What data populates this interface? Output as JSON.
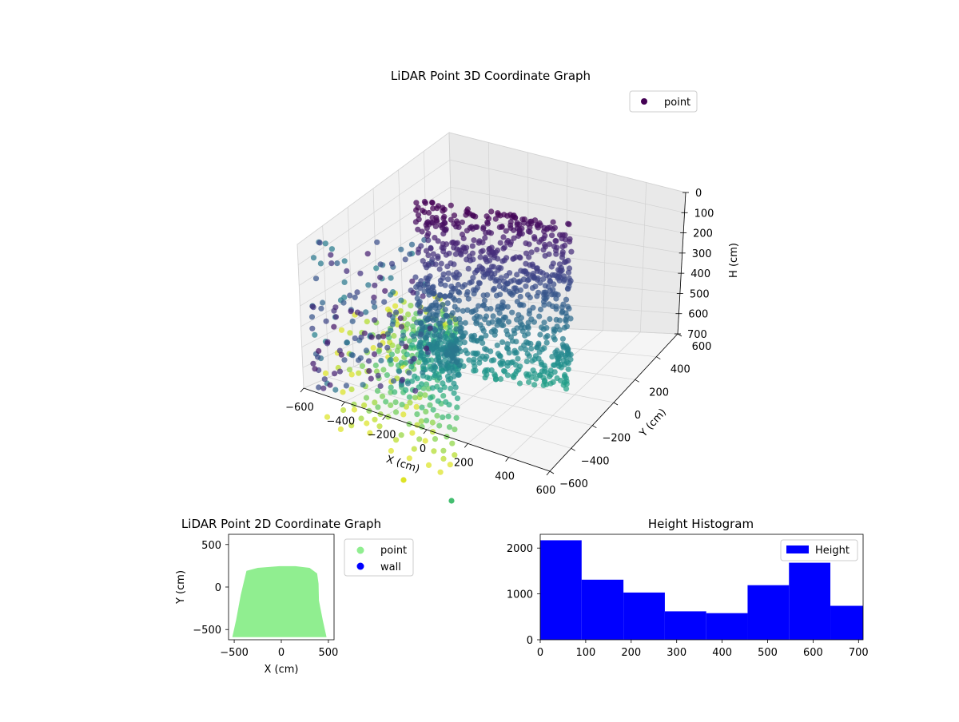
{
  "chart_data": [
    {
      "type": "scatter",
      "title": "LiDAR Point 3D Coordinate Graph",
      "xlabel": "X (cm)",
      "ylabel": "Y (cm)",
      "zlabel": "H (cm)",
      "xlim": [
        -600,
        600
      ],
      "ylim": [
        -600,
        600
      ],
      "zlim": [
        0,
        700
      ],
      "z_axis_inverted": true,
      "x_ticks": [
        "−600",
        "−400",
        "−200",
        "0",
        "200",
        "400",
        "600"
      ],
      "y_ticks": [
        "−600",
        "−400",
        "−200",
        "0",
        "200",
        "400",
        "600"
      ],
      "z_ticks": [
        "0",
        "100",
        "200",
        "300",
        "400",
        "500",
        "600",
        "700"
      ],
      "colormap": "viridis",
      "color_by": "height",
      "grid": true,
      "legend": {
        "position": "top-right",
        "entries": [
          {
            "label": "point",
            "color": "#440154"
          }
        ]
      }
    },
    {
      "type": "scatter",
      "title": "LiDAR Point 2D Coordinate Graph",
      "xlabel": "X (cm)",
      "ylabel": "Y (cm)",
      "xlim": [
        -560,
        560
      ],
      "ylim": [
        -620,
        620
      ],
      "x_ticks": [
        "−500",
        "0",
        "500"
      ],
      "y_ticks": [
        "−500",
        "0",
        "500"
      ],
      "footprint_outline": [
        [
          -520,
          -590
        ],
        [
          -480,
          -390
        ],
        [
          -430,
          -90
        ],
        [
          -370,
          190
        ],
        [
          -250,
          225
        ],
        [
          -20,
          245
        ],
        [
          150,
          245
        ],
        [
          300,
          225
        ],
        [
          380,
          160
        ],
        [
          395,
          40
        ],
        [
          400,
          -160
        ],
        [
          440,
          -390
        ],
        [
          480,
          -590
        ]
      ],
      "legend": {
        "position": "outside-right",
        "entries": [
          {
            "label": "point",
            "color": "#90ee90"
          },
          {
            "label": "wall",
            "color": "#0000ff"
          }
        ]
      }
    },
    {
      "type": "bar",
      "title": "Height Histogram",
      "xlim": [
        0,
        710
      ],
      "ylim": [
        0,
        2300
      ],
      "x_ticks": [
        "0",
        "100",
        "200",
        "300",
        "400",
        "500",
        "600",
        "700"
      ],
      "y_ticks": [
        "0",
        "1000",
        "2000"
      ],
      "bin_edges": [
        0,
        91,
        183,
        274,
        365,
        456,
        547,
        638,
        729
      ],
      "counts": [
        2170,
        1310,
        1030,
        620,
        580,
        1190,
        1680,
        740
      ],
      "color": "#0000ff",
      "legend": {
        "position": "top-right",
        "entries": [
          {
            "label": "Height",
            "color": "#0000ff"
          }
        ]
      }
    }
  ]
}
